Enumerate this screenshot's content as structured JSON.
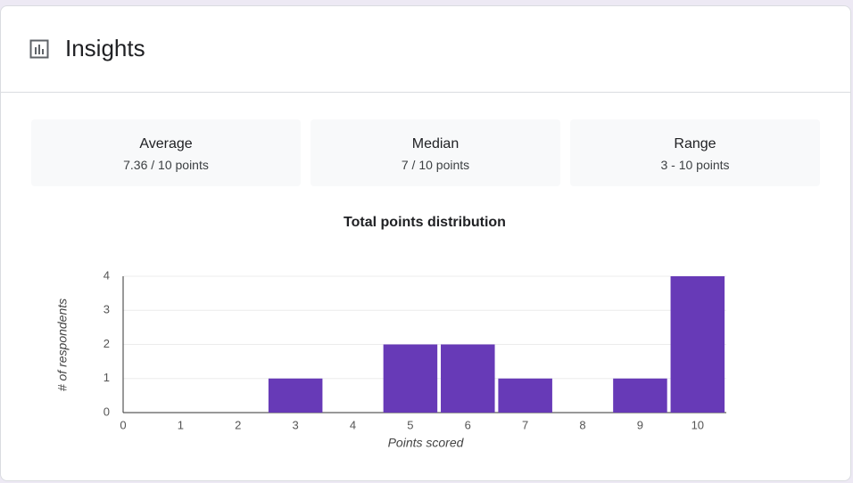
{
  "header": {
    "title": "Insights"
  },
  "stats": [
    {
      "label": "Average",
      "value": "7.36 / 10 points"
    },
    {
      "label": "Median",
      "value": "7 / 10 points"
    },
    {
      "label": "Range",
      "value": "3 - 10 points"
    }
  ],
  "chart_data": {
    "type": "bar",
    "title": "Total points distribution",
    "x_label": "Points scored",
    "y_label": "# of respondents",
    "x": [
      0,
      1,
      2,
      3,
      4,
      5,
      6,
      7,
      8,
      9,
      10
    ],
    "values": [
      0,
      0,
      0,
      1,
      0,
      2,
      2,
      1,
      0,
      1,
      4
    ],
    "color": "#673ab7",
    "xlim": [
      0,
      10.5
    ],
    "xticks": [
      0,
      1,
      2,
      3,
      4,
      5,
      6,
      7,
      8,
      9,
      10
    ],
    "ylim": [
      0,
      4
    ],
    "yticks": [
      0,
      1,
      2,
      3,
      4
    ],
    "grid": true
  }
}
